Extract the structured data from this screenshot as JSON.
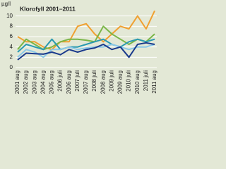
{
  "chart_data": {
    "type": "line",
    "title": "Klorofyll 2001–2011",
    "ylabel": "µg/l",
    "categories": [
      "2001 aug",
      "2002 aug",
      "2003 aug",
      "2004 aug",
      "2005 aug",
      "2006 juli",
      "2006 aug",
      "2007 juli",
      "2007 aug",
      "2008 juli",
      "2008 aug",
      "2009 juli",
      "2009 aug",
      "2010 juli",
      "2010 aug",
      "2011 juli",
      "2011 aug"
    ],
    "series": [
      {
        "color": "#f0a030",
        "values": [
          6,
          5,
          5,
          4,
          3.5,
          5,
          5,
          8,
          8.5,
          6.5,
          5,
          6.5,
          8,
          7.5,
          10,
          7.5,
          11
        ]
      },
      {
        "color": "#7ab648",
        "values": [
          3.5,
          5.5,
          4.5,
          3.5,
          4,
          5,
          5.5,
          5.5,
          5.3,
          5,
          8,
          6.5,
          5.5,
          4.5,
          5.5,
          5,
          6.5
        ]
      },
      {
        "color": "#2a9ab0",
        "values": [
          3,
          4.5,
          4,
          3.5,
          5.5,
          3.5,
          4,
          4,
          4.5,
          5,
          5.5,
          4.5,
          4,
          5,
          5.5,
          5,
          5.5
        ]
      },
      {
        "color": "#8cc8e8",
        "values": [
          2,
          3.5,
          3,
          2,
          3.5,
          3.5,
          4,
          3.5,
          3.8,
          4,
          4,
          4.5,
          4,
          3.5,
          4,
          4,
          4.5
        ]
      },
      {
        "color": "#1a3a8c",
        "values": [
          1.5,
          2.8,
          2.7,
          2.6,
          3,
          2.5,
          3.5,
          3,
          3.5,
          3.8,
          4.5,
          3.5,
          4,
          2,
          4.5,
          4.8,
          4.5
        ]
      }
    ],
    "ylim": [
      0,
      12
    ],
    "yticks": [
      0,
      2,
      4,
      6,
      8,
      10
    ],
    "grid": true
  }
}
